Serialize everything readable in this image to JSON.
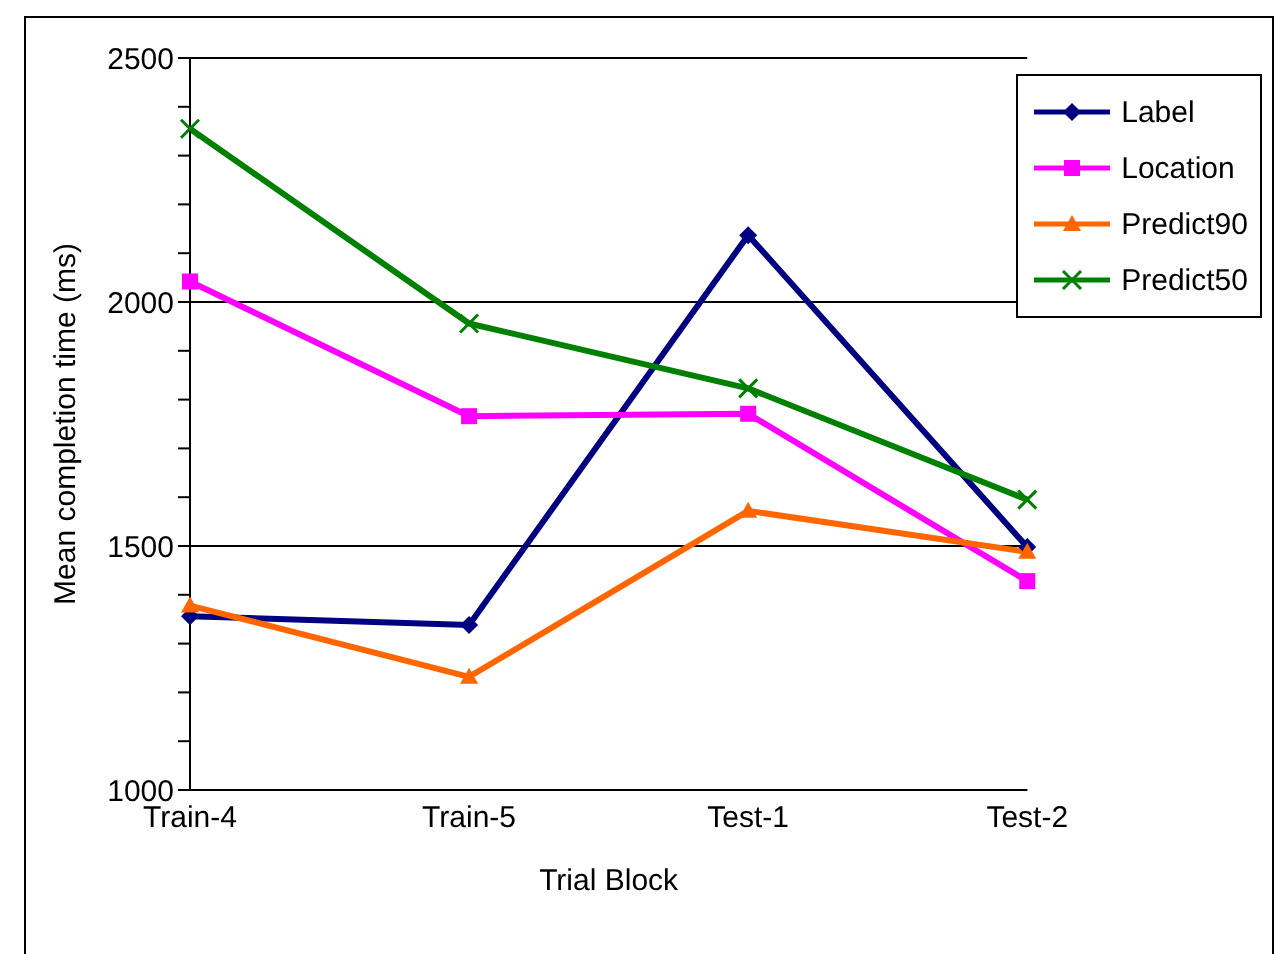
{
  "chart_data": {
    "type": "line",
    "xlabel": "Trial Block",
    "ylabel": "Mean completion time (ms)",
    "categories": [
      "Train-4",
      "Train-5",
      "Test-1",
      "Test-2"
    ],
    "ylim": [
      1000,
      2500
    ],
    "yticks": [
      1000,
      {
        "value": 1100,
        "label": null
      },
      {
        "value": 1200,
        "label": null
      },
      {
        "value": 1300,
        "label": null
      },
      {
        "value": 1400,
        "label": null
      },
      1500,
      {
        "value": 1600,
        "label": null
      },
      {
        "value": 1700,
        "label": null
      },
      {
        "value": 1800,
        "label": null
      },
      {
        "value": 1900,
        "label": null
      },
      2000,
      {
        "value": 2100,
        "label": null
      },
      {
        "value": 2200,
        "label": null
      },
      {
        "value": 2300,
        "label": null
      },
      {
        "value": 2400,
        "label": null
      },
      2500
    ],
    "grid": "y",
    "legend": "top right",
    "line_style": "solid",
    "series": [
      {
        "name": "Label",
        "color": "#000080",
        "marker": "diamond",
        "values": [
          1356,
          1338,
          2137,
          1498
        ]
      },
      {
        "name": "Location",
        "color": "#ff00ff",
        "marker": "square",
        "values": [
          2042,
          1766,
          1771,
          1428
        ]
      },
      {
        "name": "Predict90",
        "color": "#ff6600",
        "marker": "triangle",
        "values": [
          1378,
          1232,
          1572,
          1488
        ]
      },
      {
        "name": "Predict50",
        "color": "#008000",
        "marker": "cross",
        "values": [
          2355,
          1956,
          1823,
          1595
        ]
      }
    ]
  }
}
